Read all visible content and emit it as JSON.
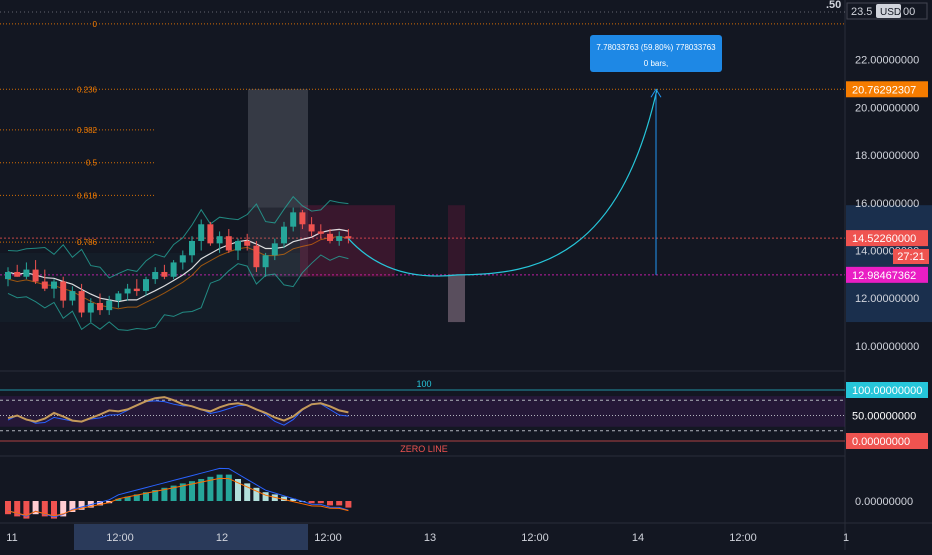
{
  "header": {
    "price_top": "23.5",
    "currency": "USD",
    "price_top_suffix": "00",
    "corner": ".50"
  },
  "fib": {
    "levels": [
      {
        "label": "0",
        "price": 23.5
      },
      {
        "label": "0.236",
        "price": 20.76
      },
      {
        "label": "0.382",
        "price": 19.06
      },
      {
        "label": "0.5",
        "price": 17.68
      },
      {
        "label": "0.618",
        "price": 16.31
      },
      {
        "label": "0.786",
        "price": 14.35
      }
    ],
    "color": "#f57c00"
  },
  "measure_box": {
    "line1": "7.78033763 (59.80%) 778033763",
    "line2": "0 bars,"
  },
  "price_axis": {
    "ticks": [
      {
        "label": "22.00000000",
        "value": 22
      },
      {
        "label": "20.00000000",
        "value": 20
      },
      {
        "label": "18.00000000",
        "value": 18
      },
      {
        "label": "16.00000000",
        "value": 16
      },
      {
        "label": "14.00000000",
        "value": 14
      },
      {
        "label": "12.00000000",
        "value": 12
      },
      {
        "label": "10.00000000",
        "value": 10
      }
    ],
    "ylim": [
      9.2,
      24
    ],
    "badges": [
      {
        "label": "20.76292307",
        "value": 20.76,
        "color": "#f57c00"
      },
      {
        "label": "14.52260000",
        "value": 14.52,
        "color": "#ef5350"
      },
      {
        "label": "12.98467362",
        "value": 12.98,
        "color": "#e91ec4"
      }
    ],
    "countdown": "27:21"
  },
  "rsi": {
    "label_100": "100",
    "zero_line": "ZERO LINE",
    "ticks": [
      {
        "label": "100.00000000",
        "value": 100,
        "color": "#26c6da"
      },
      {
        "label": "50.00000000",
        "value": 50,
        "color": "#ffffff"
      },
      {
        "label": "0.00000000",
        "value": 0,
        "color": "#ef5350"
      }
    ]
  },
  "macd": {
    "ticks": [
      {
        "label": "0.00000000",
        "value": 0
      }
    ]
  },
  "time_axis": {
    "labels": [
      "11",
      "12:00",
      "12",
      "12:00",
      "13",
      "12:00",
      "14",
      "12:00",
      "1"
    ]
  },
  "chart_data": {
    "type": "candlestick",
    "candles": [
      [
        12.8,
        13.3,
        12.5,
        13.1
      ],
      [
        13.1,
        13.4,
        12.9,
        12.9
      ],
      [
        12.9,
        13.5,
        12.8,
        13.2
      ],
      [
        13.2,
        13.6,
        12.6,
        12.7
      ],
      [
        12.7,
        13.2,
        12.3,
        12.4
      ],
      [
        12.4,
        12.8,
        12.0,
        12.7
      ],
      [
        12.7,
        12.9,
        11.6,
        11.9
      ],
      [
        11.9,
        12.5,
        11.7,
        12.3
      ],
      [
        12.3,
        12.6,
        11.2,
        11.4
      ],
      [
        11.4,
        12.0,
        11.0,
        11.8
      ],
      [
        11.8,
        12.2,
        11.3,
        11.5
      ],
      [
        11.5,
        12.1,
        11.3,
        11.9
      ],
      [
        11.9,
        12.3,
        11.6,
        12.2
      ],
      [
        12.2,
        12.6,
        11.9,
        12.4
      ],
      [
        12.4,
        12.8,
        12.1,
        12.3
      ],
      [
        12.3,
        12.9,
        12.1,
        12.8
      ],
      [
        12.8,
        13.3,
        12.6,
        13.1
      ],
      [
        13.1,
        13.4,
        12.8,
        12.9
      ],
      [
        12.9,
        13.6,
        12.8,
        13.5
      ],
      [
        13.5,
        14.0,
        13.2,
        13.8
      ],
      [
        13.8,
        14.6,
        13.5,
        14.4
      ],
      [
        14.4,
        15.3,
        14.0,
        15.1
      ],
      [
        15.1,
        15.2,
        14.2,
        14.3
      ],
      [
        14.3,
        14.8,
        13.9,
        14.6
      ],
      [
        14.6,
        14.9,
        13.9,
        14.0
      ],
      [
        14.0,
        14.5,
        13.6,
        14.4
      ],
      [
        14.4,
        14.7,
        14.0,
        14.2
      ],
      [
        14.2,
        14.4,
        13.1,
        13.3
      ],
      [
        13.3,
        13.9,
        12.9,
        13.8
      ],
      [
        13.8,
        14.5,
        13.6,
        14.3
      ],
      [
        14.3,
        15.2,
        14.1,
        15.0
      ],
      [
        15.0,
        15.8,
        14.8,
        15.6
      ],
      [
        15.6,
        15.7,
        14.9,
        15.1
      ],
      [
        15.1,
        15.4,
        14.6,
        14.8
      ],
      [
        14.8,
        15.1,
        14.5,
        14.7
      ],
      [
        14.7,
        14.9,
        14.3,
        14.4
      ],
      [
        14.4,
        14.8,
        14.2,
        14.6
      ],
      [
        14.6,
        14.9,
        14.3,
        14.5
      ]
    ],
    "ylim": [
      9.2,
      24
    ],
    "projection_target": 20.76,
    "projection_low": 12.98
  }
}
